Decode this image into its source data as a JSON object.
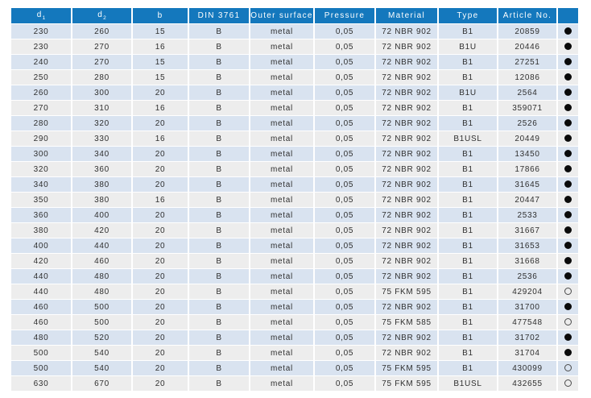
{
  "colors": {
    "header_bg": "#1478bd",
    "row_alt_blue": "#d9e3f0",
    "row_alt_gray": "#ededed",
    "header_text": "#ffffff",
    "body_text": "#2f2f2f",
    "dot_color": "#0a0a0a"
  },
  "table": {
    "columns": [
      {
        "key": "d1",
        "label": "d",
        "sub": "1"
      },
      {
        "key": "d2",
        "label": "d",
        "sub": "2"
      },
      {
        "key": "b",
        "label": "b"
      },
      {
        "key": "din",
        "label": "DIN 3761"
      },
      {
        "key": "outer_surface",
        "label": "Outer surface"
      },
      {
        "key": "pressure",
        "label": "Pressure"
      },
      {
        "key": "material",
        "label": "Material"
      },
      {
        "key": "type",
        "label": "Type"
      },
      {
        "key": "article_no",
        "label": "Article No."
      },
      {
        "key": "stock",
        "label": ""
      }
    ],
    "rows": [
      {
        "d1": "230",
        "d2": "260",
        "b": "15",
        "din": "B",
        "outer_surface": "metal",
        "pressure": "0,05",
        "material": "72 NBR 902",
        "type": "B1",
        "article_no": "20859",
        "stock": "filled"
      },
      {
        "d1": "230",
        "d2": "270",
        "b": "16",
        "din": "B",
        "outer_surface": "metal",
        "pressure": "0,05",
        "material": "72 NBR 902",
        "type": "B1U",
        "article_no": "20446",
        "stock": "filled"
      },
      {
        "d1": "240",
        "d2": "270",
        "b": "15",
        "din": "B",
        "outer_surface": "metal",
        "pressure": "0,05",
        "material": "72 NBR 902",
        "type": "B1",
        "article_no": "27251",
        "stock": "filled"
      },
      {
        "d1": "250",
        "d2": "280",
        "b": "15",
        "din": "B",
        "outer_surface": "metal",
        "pressure": "0,05",
        "material": "72 NBR 902",
        "type": "B1",
        "article_no": "12086",
        "stock": "filled"
      },
      {
        "d1": "260",
        "d2": "300",
        "b": "20",
        "din": "B",
        "outer_surface": "metal",
        "pressure": "0,05",
        "material": "72 NBR 902",
        "type": "B1U",
        "article_no": "2564",
        "stock": "filled"
      },
      {
        "d1": "270",
        "d2": "310",
        "b": "16",
        "din": "B",
        "outer_surface": "metal",
        "pressure": "0,05",
        "material": "72 NBR 902",
        "type": "B1",
        "article_no": "359071",
        "stock": "filled"
      },
      {
        "d1": "280",
        "d2": "320",
        "b": "20",
        "din": "B",
        "outer_surface": "metal",
        "pressure": "0,05",
        "material": "72 NBR 902",
        "type": "B1",
        "article_no": "2526",
        "stock": "filled"
      },
      {
        "d1": "290",
        "d2": "330",
        "b": "16",
        "din": "B",
        "outer_surface": "metal",
        "pressure": "0,05",
        "material": "72 NBR 902",
        "type": "B1USL",
        "article_no": "20449",
        "stock": "filled"
      },
      {
        "d1": "300",
        "d2": "340",
        "b": "20",
        "din": "B",
        "outer_surface": "metal",
        "pressure": "0,05",
        "material": "72 NBR 902",
        "type": "B1",
        "article_no": "13450",
        "stock": "filled"
      },
      {
        "d1": "320",
        "d2": "360",
        "b": "20",
        "din": "B",
        "outer_surface": "metal",
        "pressure": "0,05",
        "material": "72 NBR 902",
        "type": "B1",
        "article_no": "17866",
        "stock": "filled"
      },
      {
        "d1": "340",
        "d2": "380",
        "b": "20",
        "din": "B",
        "outer_surface": "metal",
        "pressure": "0,05",
        "material": "72 NBR 902",
        "type": "B1",
        "article_no": "31645",
        "stock": "filled"
      },
      {
        "d1": "350",
        "d2": "380",
        "b": "16",
        "din": "B",
        "outer_surface": "metal",
        "pressure": "0,05",
        "material": "72 NBR 902",
        "type": "B1",
        "article_no": "20447",
        "stock": "filled"
      },
      {
        "d1": "360",
        "d2": "400",
        "b": "20",
        "din": "B",
        "outer_surface": "metal",
        "pressure": "0,05",
        "material": "72 NBR 902",
        "type": "B1",
        "article_no": "2533",
        "stock": "filled"
      },
      {
        "d1": "380",
        "d2": "420",
        "b": "20",
        "din": "B",
        "outer_surface": "metal",
        "pressure": "0,05",
        "material": "72 NBR 902",
        "type": "B1",
        "article_no": "31667",
        "stock": "filled"
      },
      {
        "d1": "400",
        "d2": "440",
        "b": "20",
        "din": "B",
        "outer_surface": "metal",
        "pressure": "0,05",
        "material": "72 NBR 902",
        "type": "B1",
        "article_no": "31653",
        "stock": "filled"
      },
      {
        "d1": "420",
        "d2": "460",
        "b": "20",
        "din": "B",
        "outer_surface": "metal",
        "pressure": "0,05",
        "material": "72 NBR 902",
        "type": "B1",
        "article_no": "31668",
        "stock": "filled"
      },
      {
        "d1": "440",
        "d2": "480",
        "b": "20",
        "din": "B",
        "outer_surface": "metal",
        "pressure": "0,05",
        "material": "72 NBR 902",
        "type": "B1",
        "article_no": "2536",
        "stock": "filled"
      },
      {
        "d1": "440",
        "d2": "480",
        "b": "20",
        "din": "B",
        "outer_surface": "metal",
        "pressure": "0,05",
        "material": "75 FKM 595",
        "type": "B1",
        "article_no": "429204",
        "stock": "empty"
      },
      {
        "d1": "460",
        "d2": "500",
        "b": "20",
        "din": "B",
        "outer_surface": "metal",
        "pressure": "0,05",
        "material": "72 NBR 902",
        "type": "B1",
        "article_no": "31700",
        "stock": "filled"
      },
      {
        "d1": "460",
        "d2": "500",
        "b": "20",
        "din": "B",
        "outer_surface": "metal",
        "pressure": "0,05",
        "material": "75 FKM 585",
        "type": "B1",
        "article_no": "477548",
        "stock": "empty"
      },
      {
        "d1": "480",
        "d2": "520",
        "b": "20",
        "din": "B",
        "outer_surface": "metal",
        "pressure": "0,05",
        "material": "72 NBR 902",
        "type": "B1",
        "article_no": "31702",
        "stock": "filled"
      },
      {
        "d1": "500",
        "d2": "540",
        "b": "20",
        "din": "B",
        "outer_surface": "metal",
        "pressure": "0,05",
        "material": "72 NBR 902",
        "type": "B1",
        "article_no": "31704",
        "stock": "filled"
      },
      {
        "d1": "500",
        "d2": "540",
        "b": "20",
        "din": "B",
        "outer_surface": "metal",
        "pressure": "0,05",
        "material": "75 FKM 595",
        "type": "B1",
        "article_no": "430099",
        "stock": "empty"
      },
      {
        "d1": "630",
        "d2": "670",
        "b": "20",
        "din": "B",
        "outer_surface": "metal",
        "pressure": "0,05",
        "material": "75 FKM 595",
        "type": "B1USL",
        "article_no": "432655",
        "stock": "empty"
      }
    ]
  }
}
